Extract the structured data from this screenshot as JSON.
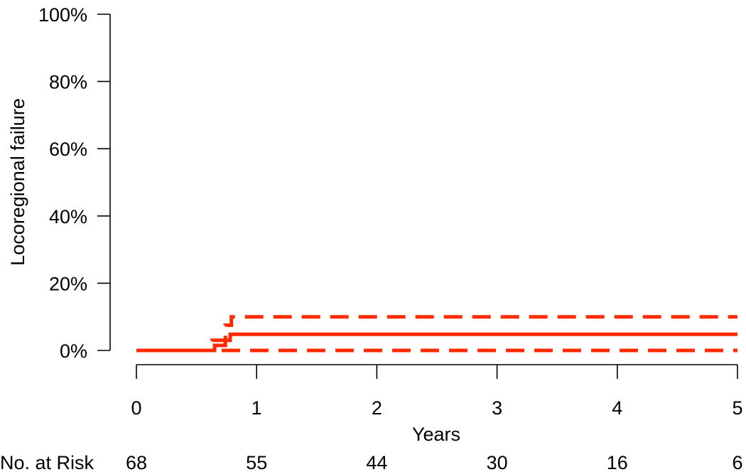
{
  "chart_data": {
    "type": "line",
    "xlabel": "Years",
    "ylabel": "Locoregional failure",
    "xlim": [
      0,
      5
    ],
    "ylim": [
      0,
      1
    ],
    "x_ticks": [
      0,
      1,
      2,
      3,
      4,
      5
    ],
    "x_tick_labels": [
      "0",
      "1",
      "2",
      "3",
      "4",
      "5"
    ],
    "y_ticks": [
      0,
      0.2,
      0.4,
      0.6,
      0.8,
      1.0
    ],
    "y_tick_labels": [
      "0%",
      "20%",
      "40%",
      "60%",
      "80%",
      "100%"
    ],
    "grid": false,
    "color": "#ff2a00",
    "series": [
      {
        "style": "solid",
        "x": [
          0,
          0.65,
          0.74,
          0.78,
          5
        ],
        "y": [
          0,
          0.015,
          0.03,
          0.048,
          0.048
        ]
      },
      {
        "style": "dashed",
        "x": [
          0,
          0.63,
          0.74,
          0.79,
          5
        ],
        "y": [
          0,
          0.03,
          0.075,
          0.1,
          0.1
        ]
      },
      {
        "style": "dashed",
        "x": [
          0,
          5
        ],
        "y": [
          0,
          0
        ]
      }
    ],
    "risk_table": {
      "label": "No. at Risk",
      "times": [
        0,
        1,
        2,
        3,
        4,
        5
      ],
      "values": [
        "68",
        "55",
        "44",
        "30",
        "16",
        "6"
      ]
    }
  }
}
